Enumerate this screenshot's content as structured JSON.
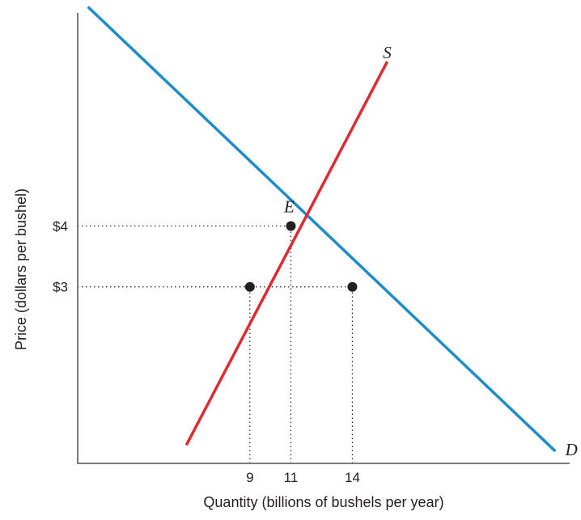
{
  "chart_data": {
    "type": "line",
    "title": "",
    "xlabel": "Quantity (billions of bushels per year)",
    "ylabel": "Price (dollars per bushel)",
    "x_ticks": [
      {
        "value": 9,
        "label": "9"
      },
      {
        "value": 11,
        "label": "11"
      },
      {
        "value": 14,
        "label": "14"
      }
    ],
    "y_ticks": [
      {
        "value": 3,
        "label": "$3"
      },
      {
        "value": 4,
        "label": "$4"
      }
    ],
    "xlim": [
      0.6,
      24.6
    ],
    "ylim": [
      0.1,
      7.5
    ],
    "series": [
      {
        "name": "D",
        "color": "#1d8ccc",
        "points": [
          [
            1.1,
            7.6
          ],
          [
            23.9,
            0.3
          ]
        ]
      },
      {
        "name": "S",
        "color": "#e02a2f",
        "points": [
          [
            5.9,
            0.4
          ],
          [
            15.7,
            6.7
          ]
        ]
      }
    ],
    "points": [
      {
        "label": "E",
        "x": 11,
        "y": 4
      },
      {
        "label": "",
        "x": 9,
        "y": 3
      },
      {
        "label": "",
        "x": 14,
        "y": 3
      }
    ],
    "guides": [
      {
        "from": [
          0.6,
          4
        ],
        "to": [
          11,
          4
        ]
      },
      {
        "from": [
          0.6,
          3
        ],
        "to": [
          14,
          3
        ]
      },
      {
        "from": [
          9,
          0.1
        ],
        "to": [
          9,
          3
        ]
      },
      {
        "from": [
          11,
          0.1
        ],
        "to": [
          11,
          4
        ]
      },
      {
        "from": [
          14,
          0.1
        ],
        "to": [
          14,
          3
        ]
      }
    ],
    "grid": false,
    "legend": "none"
  }
}
